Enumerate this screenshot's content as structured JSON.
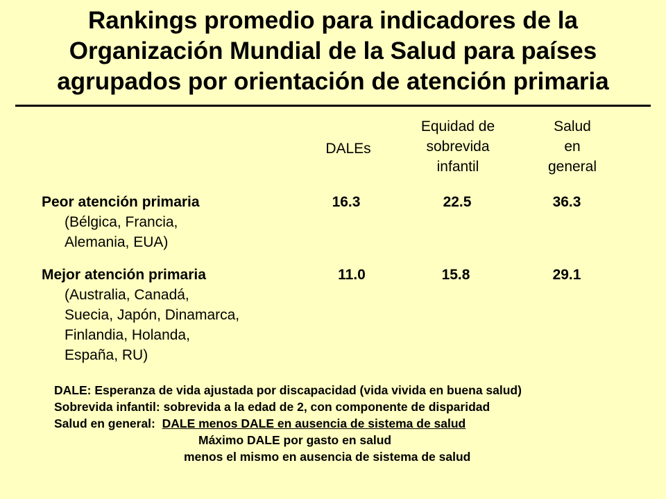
{
  "title": {
    "line1": "Rankings promedio para indicadores de la",
    "line2": "Organización Mundial de la Salud para países",
    "line3": "agrupados por orientación de atención primaria"
  },
  "columns": [
    {
      "label": "DALEs"
    },
    {
      "label": "Equidad de\nsobrevida\ninfantil"
    },
    {
      "label": "Salud\nen\ngeneral"
    }
  ],
  "rows": [
    {
      "label": "Peor atención primaria",
      "countries": "(Bélgica, Francia,\n Alemania, EUA)",
      "values": [
        "16.3",
        "22.5",
        "36.3"
      ]
    },
    {
      "label": "Mejor atención primaria",
      "countries": "(Australia, Canadá,\nSuecia, Japón, Dinamarca,\nFinlandia, Holanda,\nEspaña, RU)",
      "values": [
        "11.0",
        "15.8",
        "29.1"
      ]
    }
  ],
  "notes": {
    "dale": "DALE:  Esperanza de vida ajustada por discapacidad (vida vivida en buena salud)",
    "sobrevida": "Sobrevida infantil:  sobrevida a la edad de 2, con componente de disparidad",
    "salud_prefix": "Salud en general:  ",
    "salud_numerator": "DALE menos DALE en ausencia de sistema de salud",
    "salud_line2": "Máximo DALE por gasto en salud",
    "salud_line3": "menos el mismo en ausencia de sistema de salud"
  }
}
